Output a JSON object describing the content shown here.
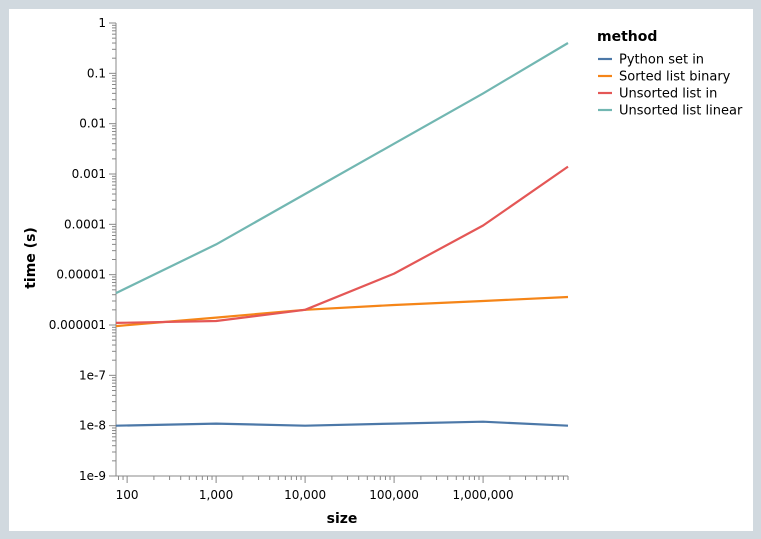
{
  "chart_data": {
    "type": "line",
    "title": "",
    "xlabel": "size",
    "ylabel": "time (s)",
    "xscale": "log",
    "yscale": "log",
    "xlim": [
      75,
      9000000
    ],
    "ylim": [
      1e-09,
      1
    ],
    "grid": false,
    "legend_position": "right",
    "x_tick_labels": [
      {
        "value": 100,
        "label": "100"
      },
      {
        "value": 1000,
        "label": "1,000"
      },
      {
        "value": 10000,
        "label": "10,000"
      },
      {
        "value": 100000,
        "label": "100,000"
      },
      {
        "value": 1000000,
        "label": "1,000,000"
      }
    ],
    "y_tick_labels": [
      {
        "value": 1,
        "label": "1"
      },
      {
        "value": 0.1,
        "label": "0.1"
      },
      {
        "value": 0.01,
        "label": "0.01"
      },
      {
        "value": 0.001,
        "label": "0.001"
      },
      {
        "value": 0.0001,
        "label": "0.0001"
      },
      {
        "value": 1e-05,
        "label": "0.00001"
      },
      {
        "value": 1e-06,
        "label": "0.000001"
      },
      {
        "value": 1e-07,
        "label": "1e-7"
      },
      {
        "value": 1e-08,
        "label": "1e-8"
      },
      {
        "value": 1e-09,
        "label": "1e-9"
      }
    ],
    "legend_title": "method",
    "x": [
      75,
      1000,
      10000,
      100000,
      1000000,
      9000000
    ],
    "series": [
      {
        "name": "Python set in",
        "color": "#4c78a8",
        "values": [
          1e-08,
          1.1e-08,
          1e-08,
          1.1e-08,
          1.2e-08,
          1e-08
        ]
      },
      {
        "name": "Sorted list binary",
        "color": "#f58518",
        "values": [
          9.5e-07,
          1.4e-06,
          2e-06,
          2.5e-06,
          3e-06,
          3.6e-06
        ]
      },
      {
        "name": "Unsorted list in",
        "color": "#e45756",
        "values": [
          1.1e-06,
          1.2e-06,
          2e-06,
          1.05e-05,
          9.5e-05,
          0.0014
        ]
      },
      {
        "name": "Unsorted list linear",
        "color": "#72b7b2",
        "values": [
          4.3e-06,
          4e-05,
          0.0004,
          0.004,
          0.04,
          0.4
        ]
      }
    ]
  }
}
